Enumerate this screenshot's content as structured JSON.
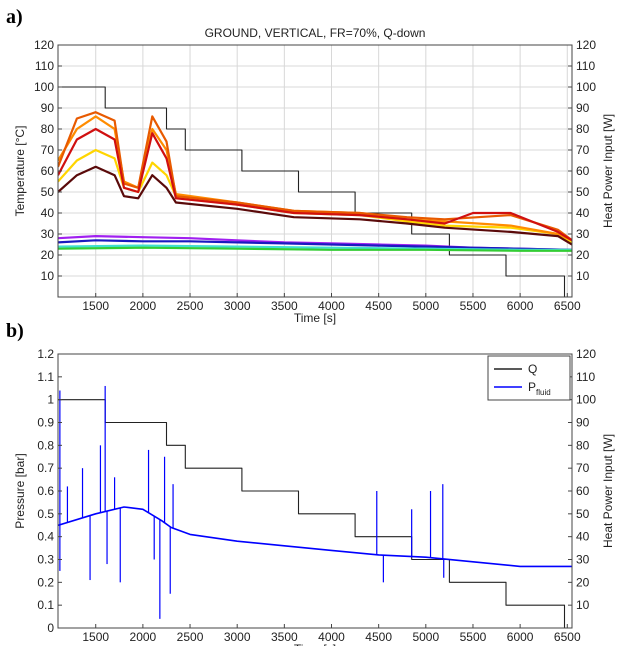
{
  "panel_labels": [
    "a)",
    "b)"
  ],
  "chart_data": [
    {
      "type": "line",
      "title": "GROUND, VERTICAL, FR=70%, Q-down",
      "xlabel": "Time [s]",
      "ylabel": "Temperature [°C]",
      "y2label": "Heat Power Input [W]",
      "xlim": [
        1100,
        6550
      ],
      "ylim": [
        0,
        120
      ],
      "y2lim": [
        0,
        120
      ],
      "xticks": [
        1500,
        2000,
        2500,
        3000,
        3500,
        4000,
        4500,
        5000,
        5500,
        6000,
        6500
      ],
      "yticks": [
        10,
        20,
        30,
        40,
        50,
        60,
        70,
        80,
        90,
        100,
        110,
        120
      ],
      "y2ticks": [
        10,
        20,
        30,
        40,
        50,
        60,
        70,
        80,
        90,
        100,
        110,
        120
      ],
      "grid": true,
      "series": [
        {
          "color": "#222222",
          "axis": "right",
          "step": true,
          "x": [
            1100,
            1600,
            1600,
            2250,
            2250,
            2450,
            2450,
            3050,
            3050,
            3650,
            3650,
            4250,
            4250,
            4850,
            4850,
            5250,
            5250,
            5850,
            5850,
            6470,
            6470
          ],
          "values": [
            100,
            100,
            90,
            90,
            80,
            80,
            70,
            70,
            60,
            60,
            50,
            50,
            40,
            40,
            30,
            30,
            20,
            20,
            10,
            10,
            0
          ]
        },
        {
          "color": "#ffd500",
          "x": [
            1100,
            1300,
            1500,
            1700,
            1800,
            1950,
            2100,
            2250,
            2350,
            3000,
            3600,
            4300,
            4800,
            5200,
            5900,
            6400,
            6550
          ],
          "values": [
            55,
            65,
            70,
            66,
            52,
            50,
            64,
            58,
            48,
            44,
            40,
            39,
            36,
            34,
            33,
            30,
            26
          ]
        },
        {
          "color": "#ff8c00",
          "x": [
            1100,
            1300,
            1500,
            1700,
            1800,
            1950,
            2100,
            2250,
            2350,
            3000,
            3600,
            4300,
            4800,
            5200,
            5900,
            6400,
            6550
          ],
          "values": [
            65,
            80,
            86,
            80,
            55,
            52,
            80,
            70,
            49,
            45,
            41,
            40,
            37,
            36,
            34,
            30,
            27
          ]
        },
        {
          "color": "#e85a00",
          "x": [
            1100,
            1300,
            1500,
            1700,
            1800,
            1950,
            2100,
            2250,
            2350,
            3000,
            3600,
            4300,
            4800,
            5200,
            5900,
            6400,
            6550
          ],
          "values": [
            62,
            85,
            88,
            84,
            54,
            52,
            86,
            74,
            48,
            45,
            41,
            40,
            38,
            37,
            39,
            32,
            27
          ]
        },
        {
          "color": "#d01010",
          "x": [
            1100,
            1300,
            1500,
            1700,
            1800,
            1950,
            2100,
            2250,
            2350,
            3000,
            3600,
            4300,
            4800,
            5200,
            5500,
            5900,
            6400,
            6550
          ],
          "values": [
            58,
            75,
            80,
            75,
            52,
            50,
            78,
            66,
            47,
            44,
            40,
            39,
            37,
            35,
            40,
            40,
            31,
            27
          ]
        },
        {
          "color": "#5a0a0a",
          "x": [
            1100,
            1300,
            1500,
            1700,
            1800,
            1950,
            2100,
            2250,
            2350,
            3000,
            3600,
            4300,
            4800,
            5200,
            5900,
            6400,
            6550
          ],
          "values": [
            50,
            58,
            62,
            58,
            48,
            47,
            58,
            52,
            45,
            42,
            38,
            37,
            35,
            33,
            31,
            29,
            25
          ]
        },
        {
          "color": "#a020f0",
          "x": [
            1100,
            1500,
            2000,
            2500,
            3000,
            3500,
            4000,
            4500,
            5000,
            5500,
            6000,
            6550
          ],
          "values": [
            28,
            29,
            28.5,
            28,
            27,
            26,
            25.5,
            25,
            24.5,
            23.5,
            23,
            22.5
          ]
        },
        {
          "color": "#1a1ac0",
          "x": [
            1100,
            1500,
            2000,
            2500,
            3000,
            3500,
            4000,
            4500,
            5000,
            5500,
            6000,
            6550
          ],
          "values": [
            26,
            27,
            26.5,
            26.5,
            26,
            25.5,
            25,
            24.5,
            24,
            23.5,
            23,
            22.5
          ]
        },
        {
          "color": "#40e0d0",
          "x": [
            1100,
            2000,
            3000,
            4000,
            5000,
            6000,
            6550
          ],
          "values": [
            24,
            24.5,
            24,
            23.5,
            23,
            22.5,
            22.5
          ]
        },
        {
          "color": "#33cc33",
          "x": [
            1100,
            2000,
            3000,
            4000,
            5000,
            6000,
            6550
          ],
          "values": [
            23,
            23.5,
            23,
            22.5,
            22.5,
            22,
            22
          ]
        }
      ]
    },
    {
      "type": "line",
      "title": "",
      "xlabel": "Time [s]",
      "ylabel": "Pressure [bar]",
      "y2label": "Heat Power Input [W]",
      "xlim": [
        1100,
        6550
      ],
      "ylim": [
        0,
        1.2
      ],
      "y2lim": [
        0,
        120
      ],
      "xticks": [
        1500,
        2000,
        2500,
        3000,
        3500,
        4000,
        4500,
        5000,
        5500,
        6000,
        6500
      ],
      "yticks": [
        0,
        0.1,
        0.2,
        0.3,
        0.4,
        0.5,
        0.6,
        0.7,
        0.8,
        0.9,
        1,
        1.1,
        1.2
      ],
      "y2ticks": [
        10,
        20,
        30,
        40,
        50,
        60,
        70,
        80,
        90,
        100,
        110,
        120
      ],
      "grid": false,
      "legend": {
        "position": "top-right",
        "entries": [
          "Q",
          "P"
        ],
        "fluid_subscript": "fluid"
      },
      "series": [
        {
          "name": "Q",
          "color": "#222222",
          "axis": "right",
          "step": true,
          "x": [
            1100,
            1600,
            1600,
            2250,
            2250,
            2450,
            2450,
            3050,
            3050,
            3650,
            3650,
            4250,
            4250,
            4850,
            4850,
            5250,
            5250,
            5850,
            5850,
            6470,
            6470
          ],
          "values": [
            100,
            100,
            90,
            90,
            80,
            80,
            70,
            70,
            60,
            60,
            50,
            50,
            40,
            40,
            30,
            30,
            20,
            20,
            10,
            10,
            0
          ]
        },
        {
          "name": "Pfluid",
          "color": "#0000ff",
          "axis": "left",
          "x": [
            1100,
            1500,
            1800,
            2000,
            2200,
            2300,
            2500,
            3000,
            3500,
            4000,
            4500,
            5000,
            5500,
            6000,
            6550
          ],
          "values": [
            0.45,
            0.5,
            0.53,
            0.52,
            0.47,
            0.44,
            0.41,
            0.38,
            0.36,
            0.34,
            0.32,
            0.31,
            0.29,
            0.27,
            0.27
          ],
          "spikes": [
            {
              "x": 1120,
              "values": [
                1.04,
                0.25
              ]
            },
            {
              "x": 1200,
              "values": [
                0.62
              ]
            },
            {
              "x": 1360,
              "values": [
                0.7
              ]
            },
            {
              "x": 1440,
              "values": [
                0.21
              ]
            },
            {
              "x": 1550,
              "values": [
                0.8
              ]
            },
            {
              "x": 1600,
              "values": [
                1.06
              ]
            },
            {
              "x": 1620,
              "values": [
                0.28
              ]
            },
            {
              "x": 1700,
              "values": [
                0.66
              ]
            },
            {
              "x": 1760,
              "values": [
                0.2
              ]
            },
            {
              "x": 2060,
              "values": [
                0.78
              ]
            },
            {
              "x": 2120,
              "values": [
                0.3
              ]
            },
            {
              "x": 2180,
              "values": [
                0.04
              ]
            },
            {
              "x": 2230,
              "values": [
                0.75
              ]
            },
            {
              "x": 2290,
              "values": [
                0.15
              ]
            },
            {
              "x": 2320,
              "values": [
                0.63
              ]
            },
            {
              "x": 4480,
              "values": [
                0.6
              ]
            },
            {
              "x": 4550,
              "values": [
                0.2
              ]
            },
            {
              "x": 4850,
              "values": [
                0.52
              ]
            },
            {
              "x": 5050,
              "values": [
                0.6
              ]
            },
            {
              "x": 5180,
              "values": [
                0.63
              ]
            },
            {
              "x": 5190,
              "values": [
                0.22
              ]
            }
          ]
        }
      ]
    }
  ]
}
